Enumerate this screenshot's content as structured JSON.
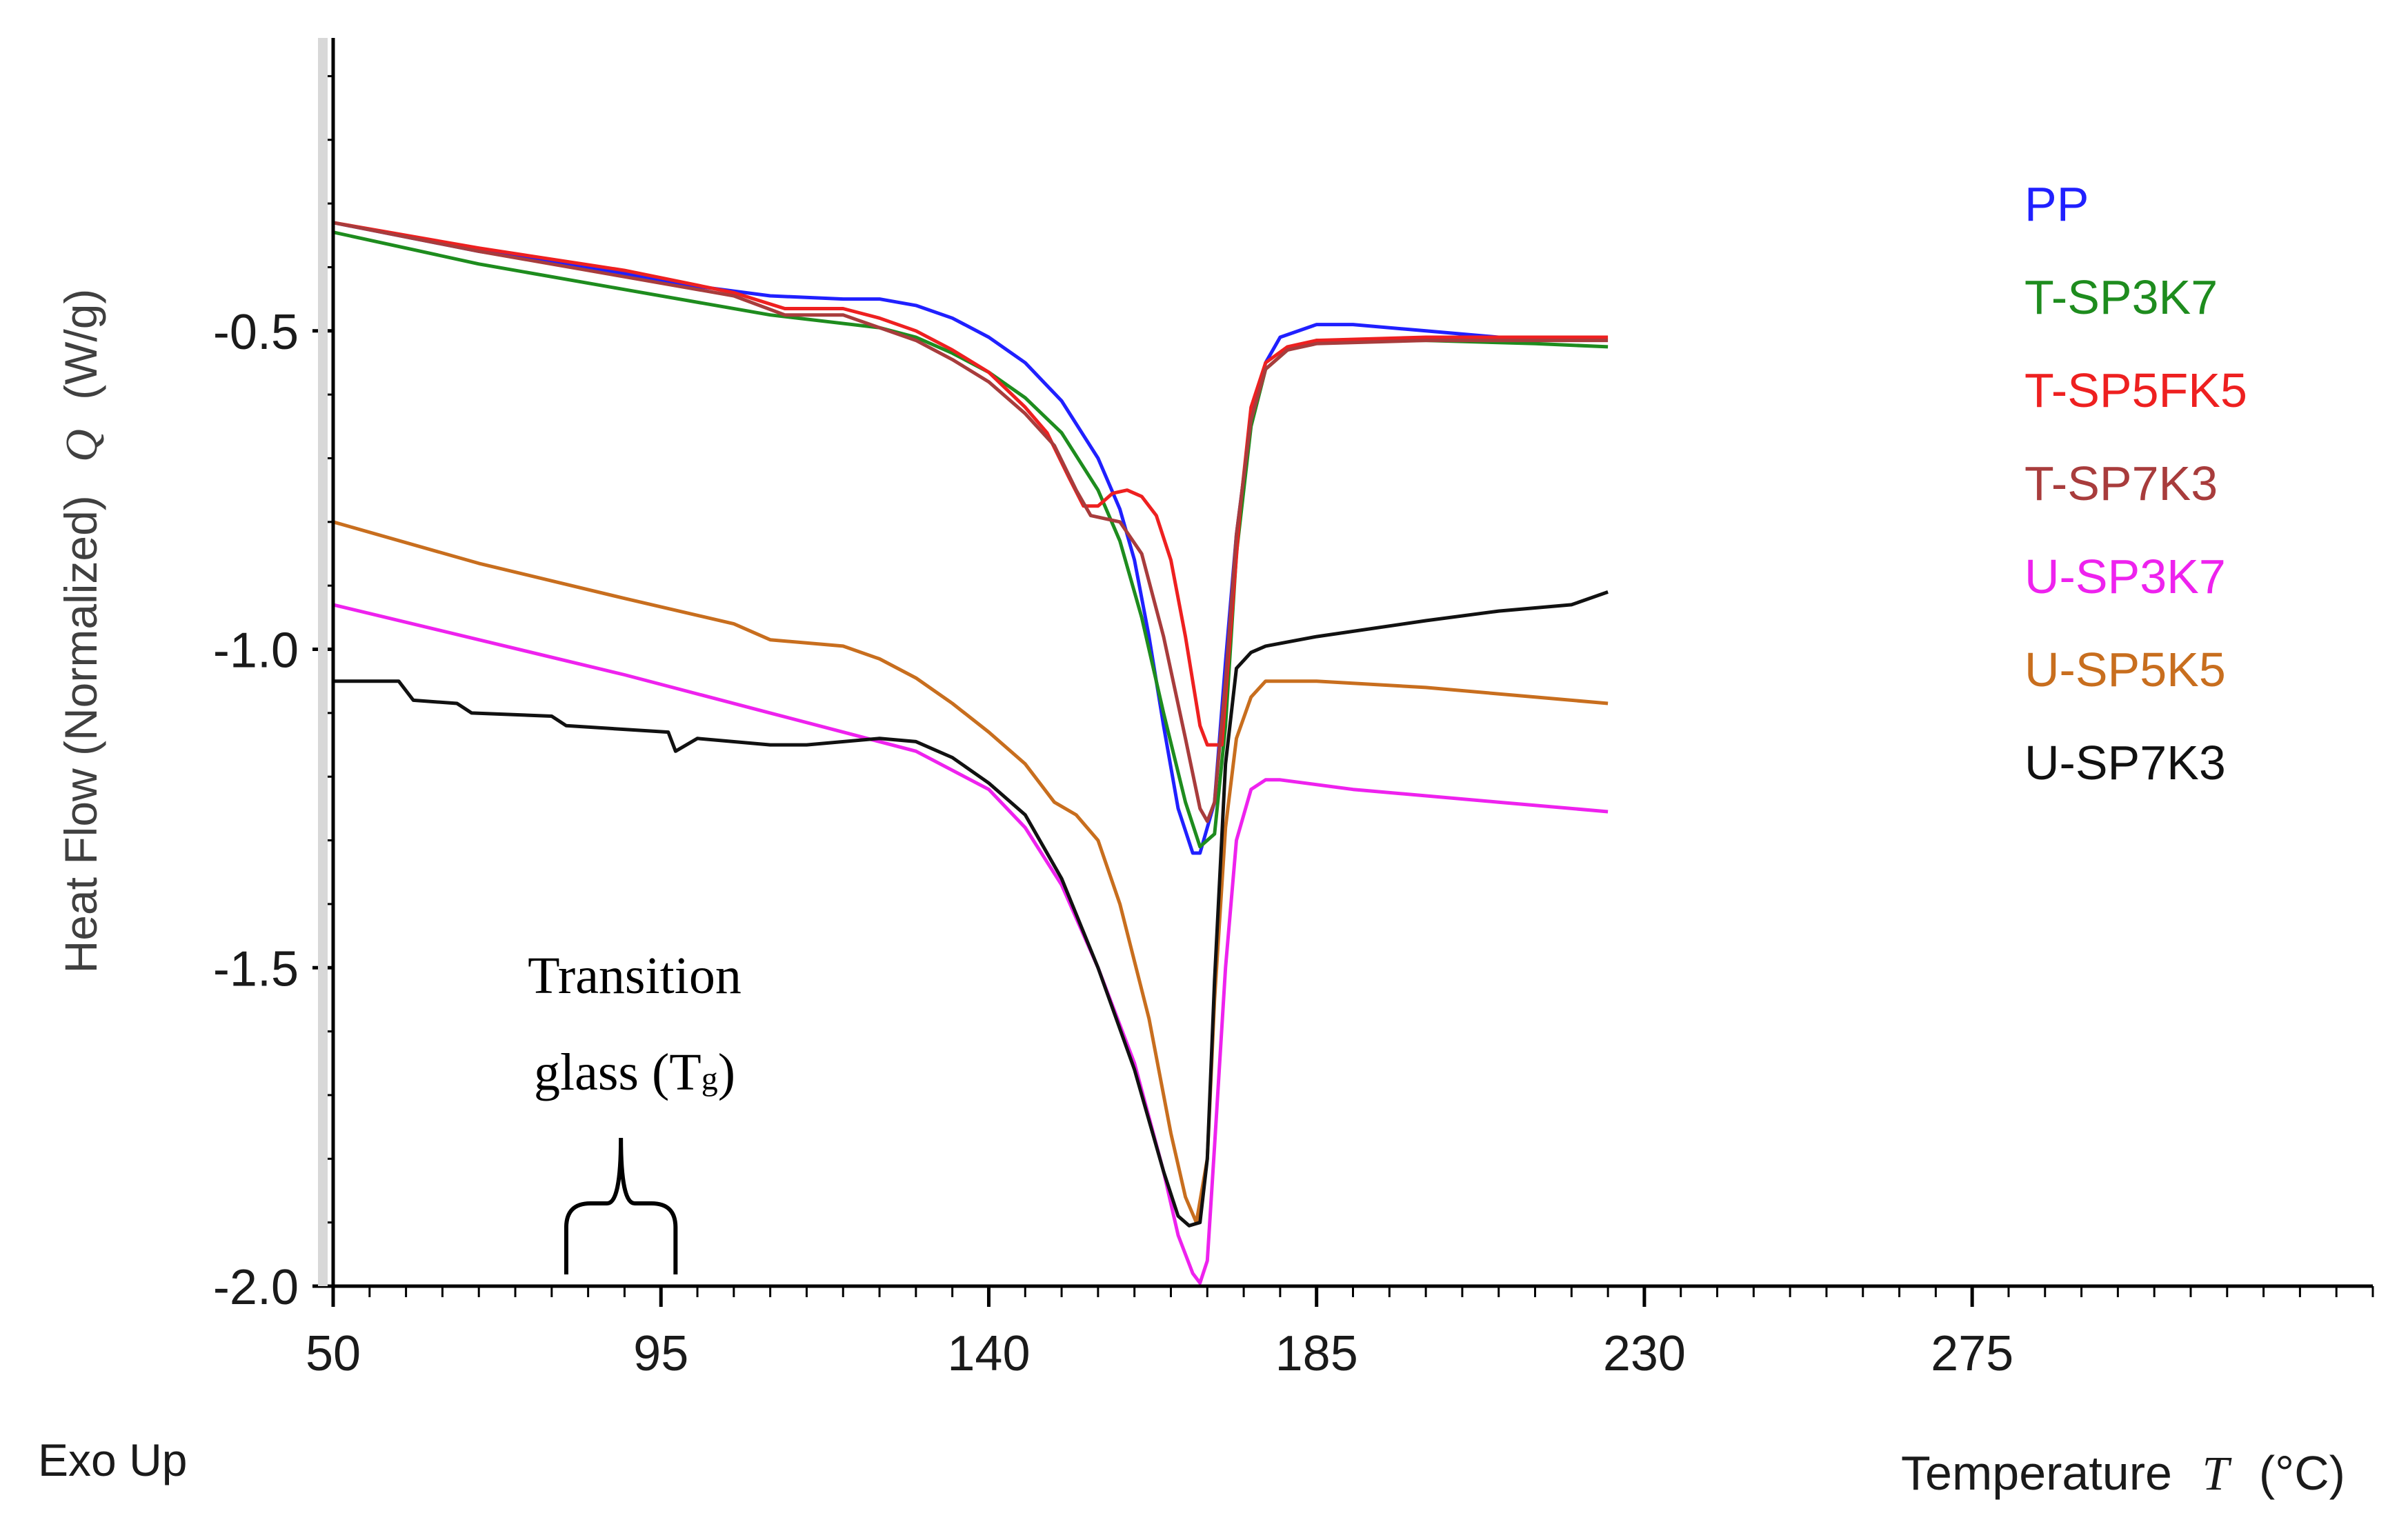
{
  "chart_data": {
    "type": "line",
    "title": "",
    "ylabel_text": "Heat Flow (Normalized)",
    "ylabel_var": "Q",
    "ylabel_unit": "(W/g)",
    "xlabel_text": "Temperature",
    "xlabel_var": "T",
    "xlabel_unit": "(°C)",
    "corner_note": "Exo Up",
    "xlim": [
      50,
      330
    ],
    "ylim": [
      -2.0,
      -0.04
    ],
    "x_ticks": [
      50,
      95,
      140,
      185,
      230,
      275
    ],
    "x_tick_labels": [
      "50",
      "95",
      "140",
      "185",
      "230",
      "275"
    ],
    "y_ticks": [
      -0.5,
      -1.0,
      -1.5,
      -2.0
    ],
    "y_tick_labels": [
      "-0.5",
      "-1.0",
      "-1.5",
      "-2.0"
    ],
    "legend_position": "right",
    "annotation": {
      "line1": "Transition",
      "line2_main": "glass (T",
      "line2_sub": "g",
      "line2_end": ")",
      "x_range": [
        82,
        97
      ]
    },
    "series": [
      {
        "name": "PP",
        "color": "#2020ff",
        "points": [
          [
            50,
            -0.33
          ],
          [
            70,
            -0.375
          ],
          [
            90,
            -0.41
          ],
          [
            100,
            -0.43
          ],
          [
            110,
            -0.445
          ],
          [
            120,
            -0.45
          ],
          [
            125,
            -0.45
          ],
          [
            130,
            -0.46
          ],
          [
            135,
            -0.48
          ],
          [
            140,
            -0.51
          ],
          [
            145,
            -0.55
          ],
          [
            150,
            -0.61
          ],
          [
            155,
            -0.7
          ],
          [
            158,
            -0.78
          ],
          [
            160,
            -0.86
          ],
          [
            162,
            -0.98
          ],
          [
            164,
            -1.12
          ],
          [
            166,
            -1.25
          ],
          [
            168,
            -1.32
          ],
          [
            169,
            -1.32
          ],
          [
            171,
            -1.24
          ],
          [
            172.5,
            -1.02
          ],
          [
            174,
            -0.82
          ],
          [
            176,
            -0.64
          ],
          [
            178,
            -0.55
          ],
          [
            180,
            -0.51
          ],
          [
            185,
            -0.49
          ],
          [
            190,
            -0.49
          ],
          [
            200,
            -0.5
          ],
          [
            210,
            -0.51
          ],
          [
            215,
            -0.51
          ]
        ]
      },
      {
        "name": "T-SP3K7",
        "color": "#1e8c1e",
        "points": [
          [
            50,
            -0.345
          ],
          [
            70,
            -0.395
          ],
          [
            90,
            -0.435
          ],
          [
            110,
            -0.475
          ],
          [
            125,
            -0.495
          ],
          [
            130,
            -0.51
          ],
          [
            135,
            -0.535
          ],
          [
            140,
            -0.565
          ],
          [
            145,
            -0.605
          ],
          [
            150,
            -0.66
          ],
          [
            155,
            -0.75
          ],
          [
            158,
            -0.83
          ],
          [
            161,
            -0.95
          ],
          [
            164,
            -1.1
          ],
          [
            167,
            -1.24
          ],
          [
            169,
            -1.31
          ],
          [
            171,
            -1.29
          ],
          [
            172.5,
            -1.12
          ],
          [
            174,
            -0.85
          ],
          [
            176,
            -0.65
          ],
          [
            178,
            -0.56
          ],
          [
            181,
            -0.53
          ],
          [
            185,
            -0.515
          ],
          [
            200,
            -0.515
          ],
          [
            215,
            -0.52
          ],
          [
            225,
            -0.525
          ]
        ]
      },
      {
        "name": "T-SP5FK5",
        "color": "#ee2020",
        "points": [
          [
            50,
            -0.33
          ],
          [
            70,
            -0.37
          ],
          [
            90,
            -0.405
          ],
          [
            105,
            -0.44
          ],
          [
            112,
            -0.465
          ],
          [
            120,
            -0.465
          ],
          [
            125,
            -0.48
          ],
          [
            130,
            -0.5
          ],
          [
            135,
            -0.53
          ],
          [
            140,
            -0.565
          ],
          [
            145,
            -0.62
          ],
          [
            148,
            -0.66
          ],
          [
            151,
            -0.73
          ],
          [
            153,
            -0.775
          ],
          [
            155,
            -0.775
          ],
          [
            157,
            -0.755
          ],
          [
            159,
            -0.75
          ],
          [
            161,
            -0.76
          ],
          [
            163,
            -0.79
          ],
          [
            165,
            -0.86
          ],
          [
            167,
            -0.98
          ],
          [
            169,
            -1.12
          ],
          [
            170,
            -1.15
          ],
          [
            172,
            -1.15
          ],
          [
            173,
            -1.0
          ],
          [
            174.5,
            -0.78
          ],
          [
            176,
            -0.62
          ],
          [
            178,
            -0.55
          ],
          [
            181,
            -0.525
          ],
          [
            185,
            -0.515
          ],
          [
            200,
            -0.51
          ],
          [
            215,
            -0.51
          ],
          [
            225,
            -0.51
          ]
        ]
      },
      {
        "name": "T-SP7K3",
        "color": "#a83c3c",
        "points": [
          [
            50,
            -0.33
          ],
          [
            70,
            -0.375
          ],
          [
            90,
            -0.415
          ],
          [
            105,
            -0.445
          ],
          [
            112,
            -0.475
          ],
          [
            120,
            -0.475
          ],
          [
            125,
            -0.495
          ],
          [
            130,
            -0.515
          ],
          [
            135,
            -0.545
          ],
          [
            140,
            -0.58
          ],
          [
            145,
            -0.63
          ],
          [
            149,
            -0.68
          ],
          [
            152,
            -0.75
          ],
          [
            154,
            -0.79
          ],
          [
            156,
            -0.795
          ],
          [
            158,
            -0.8
          ],
          [
            161,
            -0.85
          ],
          [
            164,
            -0.98
          ],
          [
            167,
            -1.14
          ],
          [
            169,
            -1.25
          ],
          [
            170,
            -1.27
          ],
          [
            171,
            -1.24
          ],
          [
            172.5,
            -1.05
          ],
          [
            174,
            -0.82
          ],
          [
            176,
            -0.64
          ],
          [
            178,
            -0.56
          ],
          [
            181,
            -0.53
          ],
          [
            185,
            -0.52
          ],
          [
            200,
            -0.515
          ],
          [
            215,
            -0.515
          ],
          [
            225,
            -0.515
          ]
        ]
      },
      {
        "name": "U-SP3K7",
        "color": "#ee22ee",
        "points": [
          [
            50,
            -0.93
          ],
          [
            70,
            -0.985
          ],
          [
            90,
            -1.04
          ],
          [
            110,
            -1.1
          ],
          [
            120,
            -1.13
          ],
          [
            130,
            -1.16
          ],
          [
            140,
            -1.22
          ],
          [
            145,
            -1.28
          ],
          [
            150,
            -1.37
          ],
          [
            155,
            -1.5
          ],
          [
            160,
            -1.65
          ],
          [
            164,
            -1.82
          ],
          [
            166,
            -1.92
          ],
          [
            168,
            -1.98
          ],
          [
            169,
            -1.995
          ],
          [
            170,
            -1.96
          ],
          [
            171,
            -1.78
          ],
          [
            172.5,
            -1.5
          ],
          [
            174,
            -1.3
          ],
          [
            176,
            -1.22
          ],
          [
            178,
            -1.205
          ],
          [
            180,
            -1.205
          ],
          [
            190,
            -1.22
          ],
          [
            210,
            -1.24
          ],
          [
            225,
            -1.255
          ]
        ]
      },
      {
        "name": "U-SP5K5",
        "color": "#c86e1e",
        "points": [
          [
            50,
            -0.8
          ],
          [
            70,
            -0.865
          ],
          [
            90,
            -0.92
          ],
          [
            105,
            -0.96
          ],
          [
            110,
            -0.985
          ],
          [
            120,
            -0.995
          ],
          [
            125,
            -1.015
          ],
          [
            130,
            -1.045
          ],
          [
            135,
            -1.085
          ],
          [
            140,
            -1.13
          ],
          [
            145,
            -1.18
          ],
          [
            149,
            -1.24
          ],
          [
            152,
            -1.26
          ],
          [
            155,
            -1.3
          ],
          [
            158,
            -1.4
          ],
          [
            162,
            -1.58
          ],
          [
            165,
            -1.76
          ],
          [
            167,
            -1.86
          ],
          [
            168.5,
            -1.9
          ],
          [
            170,
            -1.8
          ],
          [
            171,
            -1.55
          ],
          [
            172.5,
            -1.28
          ],
          [
            174,
            -1.14
          ],
          [
            176,
            -1.075
          ],
          [
            178,
            -1.05
          ],
          [
            185,
            -1.05
          ],
          [
            200,
            -1.06
          ],
          [
            215,
            -1.075
          ],
          [
            225,
            -1.085
          ]
        ]
      },
      {
        "name": "U-SP7K3",
        "color": "#111111",
        "points": [
          [
            50,
            -1.05
          ],
          [
            59,
            -1.05
          ],
          [
            61,
            -1.08
          ],
          [
            67,
            -1.085
          ],
          [
            69,
            -1.1
          ],
          [
            80,
            -1.105
          ],
          [
            82,
            -1.12
          ],
          [
            96,
            -1.13
          ],
          [
            97,
            -1.16
          ],
          [
            100,
            -1.14
          ],
          [
            110,
            -1.15
          ],
          [
            115,
            -1.15
          ],
          [
            125,
            -1.14
          ],
          [
            130,
            -1.145
          ],
          [
            135,
            -1.17
          ],
          [
            140,
            -1.21
          ],
          [
            145,
            -1.26
          ],
          [
            150,
            -1.36
          ],
          [
            155,
            -1.5
          ],
          [
            160,
            -1.66
          ],
          [
            164,
            -1.82
          ],
          [
            166,
            -1.89
          ],
          [
            167.5,
            -1.905
          ],
          [
            169,
            -1.9
          ],
          [
            170,
            -1.8
          ],
          [
            171,
            -1.52
          ],
          [
            172.5,
            -1.18
          ],
          [
            174,
            -1.03
          ],
          [
            176,
            -1.005
          ],
          [
            178,
            -0.995
          ],
          [
            185,
            -0.98
          ],
          [
            200,
            -0.955
          ],
          [
            210,
            -0.94
          ],
          [
            220,
            -0.93
          ],
          [
            225,
            -0.91
          ]
        ]
      }
    ]
  }
}
